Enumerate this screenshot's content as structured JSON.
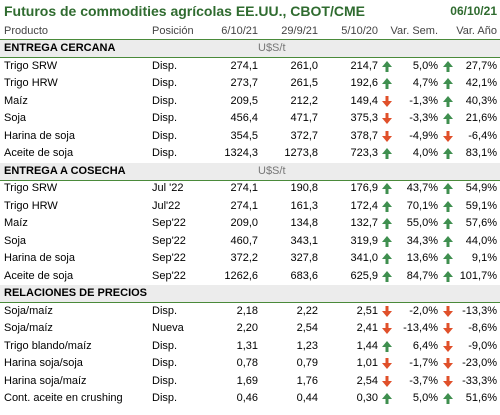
{
  "header": {
    "title": "Futuros de commodities agrícolas EE.UU., CBOT/CME",
    "date": "06/10/21"
  },
  "columns": [
    "Producto",
    "Posición",
    "6/10/21",
    "29/9/21",
    "5/10/20",
    "Var. Sem.",
    "Var. Año"
  ],
  "sections": [
    {
      "title": "ENTREGA CERCANA",
      "unit": "U$S/t",
      "rows": [
        [
          "Trigo SRW",
          "Disp.",
          "274,1",
          "261,0",
          "214,7",
          "5,0%",
          "27,7%"
        ],
        [
          "Trigo HRW",
          "Disp.",
          "273,7",
          "261,5",
          "192,6",
          "4,7%",
          "42,1%"
        ],
        [
          "Maíz",
          "Disp.",
          "209,5",
          "212,2",
          "149,4",
          "-1,3%",
          "40,3%"
        ],
        [
          "Soja",
          "Disp.",
          "456,4",
          "471,7",
          "375,3",
          "-3,3%",
          "21,6%"
        ],
        [
          "Harina de soja",
          "Disp.",
          "354,5",
          "372,7",
          "378,7",
          "-4,9%",
          "-6,4%"
        ],
        [
          "Aceite de soja",
          "Disp.",
          "1324,3",
          "1273,8",
          "723,3",
          "4,0%",
          "83,1%"
        ]
      ]
    },
    {
      "title": "ENTREGA A COSECHA",
      "unit": "U$S/t",
      "rows": [
        [
          "Trigo SRW",
          "Jul '22",
          "274,1",
          "190,8",
          "176,9",
          "43,7%",
          "54,9%"
        ],
        [
          "Trigo HRW",
          "Jul'22",
          "274,1",
          "161,3",
          "172,4",
          "70,1%",
          "59,1%"
        ],
        [
          "Maíz",
          "Sep'22",
          "209,0",
          "134,8",
          "132,7",
          "55,0%",
          "57,6%"
        ],
        [
          "Soja",
          "Sep'22",
          "460,7",
          "343,1",
          "319,9",
          "34,3%",
          "44,0%"
        ],
        [
          "Harina de soja",
          "Sep'22",
          "372,2",
          "327,8",
          "341,0",
          "13,6%",
          "9,1%"
        ],
        [
          "Aceite de soja",
          "Sep'22",
          "1262,6",
          "683,6",
          "625,9",
          "84,7%",
          "101,7%"
        ]
      ]
    },
    {
      "title": "RELACIONES DE PRECIOS",
      "rows": [
        [
          "Soja/maíz",
          "Disp.",
          "2,18",
          "2,22",
          "2,51",
          "-2,0%",
          "-13,3%"
        ],
        [
          "Soja/maíz",
          "Nueva",
          "2,20",
          "2,54",
          "2,41",
          "-13,4%",
          "-8,6%"
        ],
        [
          "Trigo blando/maíz",
          "Disp.",
          "1,31",
          "1,23",
          "1,44",
          "6,4%",
          "-9,0%"
        ],
        [
          "Harina soja/soja",
          "Disp.",
          "0,78",
          "0,79",
          "1,01",
          "-1,7%",
          "-23,0%"
        ],
        [
          "Harina soja/maíz",
          "Disp.",
          "1,69",
          "1,76",
          "2,54",
          "-3,7%",
          "-33,3%"
        ],
        [
          "Cont. aceite en crushing",
          "Disp.",
          "0,46",
          "0,44",
          "0,30",
          "5,0%",
          "51,6%"
        ]
      ]
    }
  ]
}
